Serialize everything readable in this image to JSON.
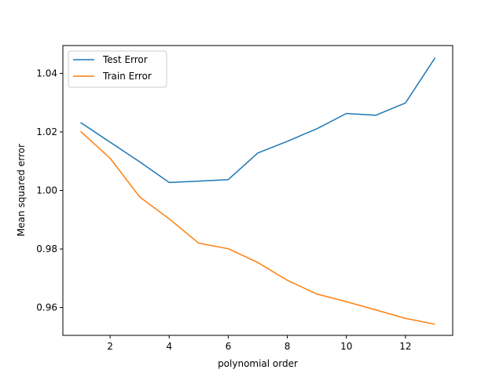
{
  "chart_data": {
    "type": "line",
    "xlabel": "polynomial order",
    "ylabel": "Mean squared error",
    "xlim": [
      0.4,
      13.6
    ],
    "ylim": [
      0.9505,
      1.0495
    ],
    "xticks": [
      2,
      4,
      6,
      8,
      10,
      12
    ],
    "yticks": [
      0.96,
      0.98,
      1.0,
      1.02,
      1.04
    ],
    "ytick_labels": [
      "0.96",
      "0.98",
      "1.00",
      "1.02",
      "1.04"
    ],
    "xtick_labels": [
      "2",
      "4",
      "6",
      "8",
      "10",
      "12"
    ],
    "grid": false,
    "legend_position": "upper-left",
    "x": [
      1,
      2,
      3,
      4,
      5,
      6,
      7,
      8,
      9,
      10,
      11,
      12,
      13
    ],
    "series": [
      {
        "name": "Test Error",
        "color": "#1f77b4",
        "values": [
          1.0232,
          1.0165,
          1.0098,
          1.0027,
          1.0032,
          1.0037,
          1.0128,
          1.0168,
          1.0211,
          1.0263,
          1.0257,
          1.0299,
          1.0453
        ]
      },
      {
        "name": "Train Error",
        "color": "#ff7f0e",
        "values": [
          1.0202,
          1.011,
          0.9978,
          0.9903,
          0.982,
          0.9801,
          0.9754,
          0.9693,
          0.9646,
          0.962,
          0.9592,
          0.9563,
          0.9543
        ]
      }
    ]
  }
}
